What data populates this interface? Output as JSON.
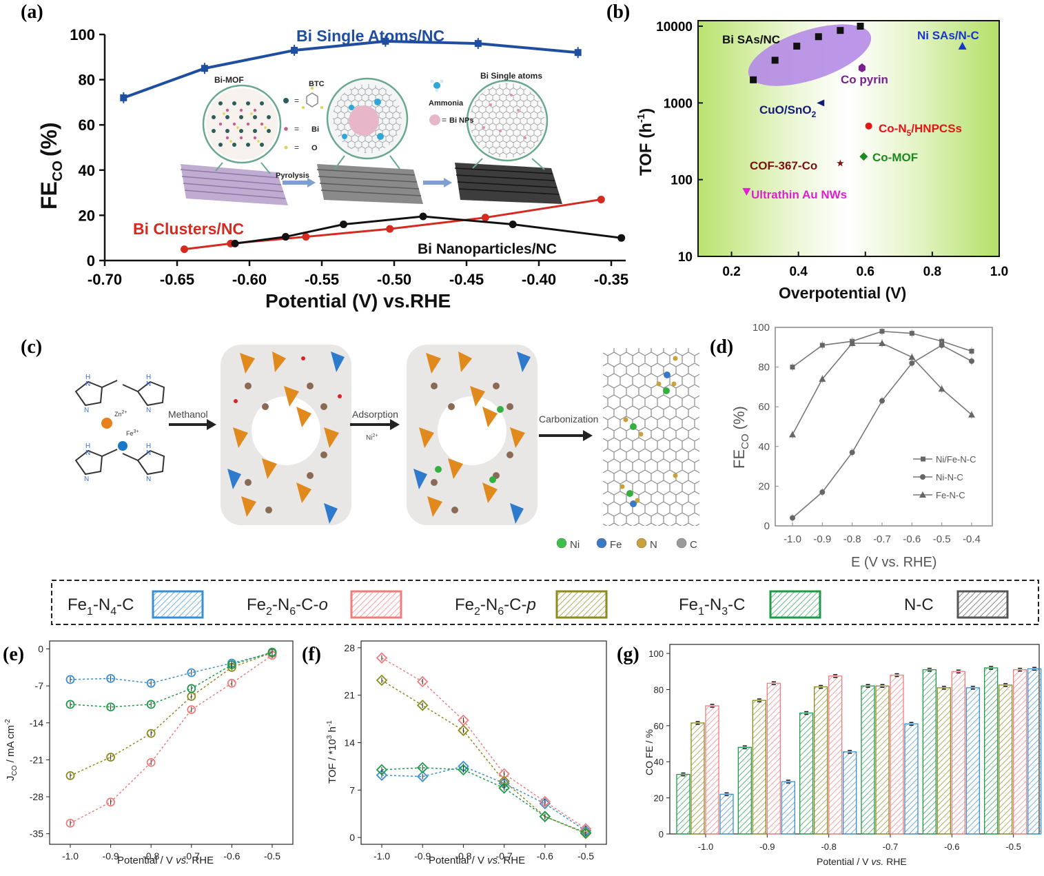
{
  "figure_title": "Composite figure: CO2-to-CO electrocatalysis on single-atom catalysts",
  "panel_labels": [
    "(a)",
    "(b)",
    "(c)",
    "(d)",
    "(e)",
    "(f)",
    "(g)"
  ],
  "colors": {
    "blue_line": "#1f4ea0",
    "red_line": "#d42a20",
    "black_line": "#111111",
    "green_bg": "#b9e36f",
    "ellipse": "#b58be6",
    "fe1n4": "#3a8fd0",
    "fe2n6o": "#f07c7c",
    "fe2n6p": "#8d8a1e",
    "fe1n3": "#1f9a4a",
    "nc": "#555555"
  },
  "chart_data": [
    {
      "panel": "(a)",
      "type": "line",
      "ylabel_main": "FE",
      "ylabel_sub": "CO",
      "ylabel_unit": "(%)",
      "xlabel": "Potential (V) vs.RHE",
      "xlim": [
        -0.7,
        -0.34
      ],
      "ylim": [
        0,
        100
      ],
      "xticks": [
        "-0.70",
        "-0.65",
        "-0.60",
        "-0.55",
        "-0.50",
        "-0.45",
        "-0.40",
        "-0.35"
      ],
      "yticks": [
        "0",
        "20",
        "40",
        "60",
        "80",
        "100"
      ],
      "series": [
        {
          "name": "Bi Single Atoms/NC",
          "x": [
            -0.687,
            -0.631,
            -0.569,
            -0.506,
            -0.442,
            -0.373
          ],
          "values": [
            72,
            85,
            93,
            97,
            96,
            92
          ]
        },
        {
          "name": "Bi Clusters/NC",
          "x": [
            -0.645,
            -0.613,
            -0.561,
            -0.503,
            -0.437,
            -0.357
          ],
          "values": [
            5,
            7.5,
            10.5,
            14,
            19,
            27
          ]
        },
        {
          "name": "Bi Nanoparticles/NC",
          "x": [
            -0.61,
            -0.575,
            -0.535,
            -0.48,
            -0.418,
            -0.343
          ],
          "values": [
            7.5,
            10.5,
            16,
            19.5,
            16,
            10
          ]
        }
      ],
      "inset_labels": {
        "bimof": "Bi-MOF",
        "btc": "BTC",
        "bi": "Bi",
        "o": "O",
        "ammonia": "Ammonia",
        "binps": "Bi NPs",
        "pyrolysis": "Pyrolysis",
        "bisingle": "Bi Single atoms"
      }
    },
    {
      "panel": "(b)",
      "type": "scatter",
      "ylabel_main": "TOF (h",
      "ylabel_sup": "-1",
      "ylabel_end": ")",
      "xlabel": "Overpotential (V)",
      "xlim": [
        0.1,
        1.0
      ],
      "ylim": [
        10,
        10000
      ],
      "yscale": "log",
      "xticks": [
        "0.2",
        "0.4",
        "0.6",
        "0.8",
        "1.0"
      ],
      "yticks": [
        "10",
        "100",
        "1000",
        "10000"
      ],
      "series": [
        {
          "name": "Bi SAs/NC",
          "x": [
            0.265,
            0.33,
            0.395,
            0.46,
            0.525,
            0.585
          ],
          "values": [
            2000,
            3600,
            5500,
            7300,
            8800,
            10000
          ]
        },
        {
          "name": "Ni SAs/N-C",
          "x": [
            0.89
          ],
          "values": [
            5500
          ]
        },
        {
          "name": "Co pyrin",
          "x": [
            0.59
          ],
          "values": [
            2900
          ]
        },
        {
          "name": "CuO/SnO2",
          "x": [
            0.465
          ],
          "values": [
            1000
          ]
        },
        {
          "name": "Co-N5/HNPCSs",
          "x": [
            0.61
          ],
          "values": [
            500
          ]
        },
        {
          "name": "Co-MOF",
          "x": [
            0.595
          ],
          "values": [
            200
          ]
        },
        {
          "name": "COF-367-Co",
          "x": [
            0.525
          ],
          "values": [
            165
          ]
        },
        {
          "name": "Ultrathin Au NWs",
          "x": [
            0.245
          ],
          "values": [
            70
          ]
        }
      ],
      "labels": {
        "bisas": "Bi SAs/NC",
        "nisas": "Ni SAs/N-C",
        "copyrin": "Co pyrin",
        "cuo": "CuO/SnO",
        "cuo_sub": "2",
        "con5": "Co-N",
        "con5_sub": "5",
        "con5_end": "/HNPCSs",
        "comof": "Co-MOF",
        "cof": "COF-367-Co",
        "au": "Ultrathin Au NWs"
      }
    },
    {
      "panel": "(d)",
      "type": "line",
      "ylabel_main": "FE",
      "ylabel_sub": "CO",
      "ylabel_unit": "(%)",
      "xlabel": "E (V vs. RHE)",
      "xlim": [
        -1.05,
        -0.35
      ],
      "ylim": [
        0,
        100
      ],
      "xticks": [
        "-1.0",
        "-0.9",
        "-0.8",
        "-0.7",
        "-0.6",
        "-0.5",
        "-0.4"
      ],
      "yticks": [
        "0",
        "20",
        "40",
        "60",
        "80",
        "100"
      ],
      "categories": [
        -1.0,
        -0.9,
        -0.8,
        -0.7,
        -0.6,
        -0.5,
        -0.4
      ],
      "series": [
        {
          "name": "Ni/Fe-N-C",
          "values": [
            80,
            91,
            93,
            98,
            97,
            93,
            88
          ]
        },
        {
          "name": "Ni-N-C",
          "values": [
            4,
            17,
            37,
            63,
            82,
            91,
            83
          ]
        },
        {
          "name": "Fe-N-C",
          "values": [
            46,
            74,
            92,
            92,
            85,
            69,
            56
          ]
        }
      ]
    },
    {
      "panel": "(e)",
      "type": "line",
      "ylabel_main": "J",
      "ylabel_sub": "CO",
      "ylabel_unit": " / mA cm",
      "ylabel_sup": "-2",
      "xlabel": "Potential / V ",
      "xlabel_ital": "vs.",
      "xlabel_end": " RHE",
      "xlim": [
        -1.05,
        -0.45
      ],
      "ylim": [
        -37,
        1.5
      ],
      "xticks": [
        "-1.0",
        "-0.9",
        "-0.8",
        "-0.7",
        "-0.6",
        "-0.5"
      ],
      "yticks": [
        "0",
        "-7",
        "-14",
        "-21",
        "-28",
        "-35"
      ],
      "categories": [
        -1.0,
        -0.9,
        -0.8,
        -0.7,
        -0.6,
        -0.5
      ],
      "series": [
        {
          "name": "Fe1-N4-C",
          "values": [
            -5.8,
            -5.6,
            -6.5,
            -4.5,
            -2.7,
            -0.8
          ]
        },
        {
          "name": "Fe2-N6-C-o",
          "values": [
            -33,
            -29,
            -21.5,
            -11.5,
            -6.5,
            -1.2
          ]
        },
        {
          "name": "Fe2-N6-C-p",
          "values": [
            -24,
            -20.5,
            -16,
            -9,
            -3.5,
            -0.7
          ]
        },
        {
          "name": "Fe1-N3-C",
          "values": [
            -10.5,
            -11,
            -10.5,
            -7.5,
            -3,
            -0.6
          ]
        }
      ]
    },
    {
      "panel": "(f)",
      "type": "line",
      "ylabel_main": "TOF / *10",
      "ylabel_sup": "3",
      "ylabel_end": " h",
      "ylabel_sup2": "-1",
      "xlabel": "Potential / V ",
      "xlabel_ital": "vs.",
      "xlabel_end": " RHE",
      "xlim": [
        -1.05,
        -0.45
      ],
      "ylim": [
        -1,
        29
      ],
      "xticks": [
        "-1.0",
        "-0.9",
        "-0.8",
        "-0.7",
        "-0.6",
        "-0.5"
      ],
      "yticks": [
        "0",
        "7",
        "14",
        "21",
        "28"
      ],
      "categories": [
        -1.0,
        -0.9,
        -0.8,
        -0.7,
        -0.6,
        -0.5
      ],
      "series": [
        {
          "name": "Fe1-N4-C",
          "values": [
            9.2,
            9,
            10.5,
            8,
            5,
            1
          ]
        },
        {
          "name": "Fe2-N6-C-o",
          "values": [
            26.5,
            23,
            17.3,
            9.4,
            5.3,
            1.3
          ]
        },
        {
          "name": "Fe2-N6-C-p",
          "values": [
            23.2,
            19.5,
            15.8,
            8.3,
            3.1,
            0.6
          ]
        },
        {
          "name": "Fe1-N3-C",
          "values": [
            10,
            10.3,
            10,
            7.3,
            3.1,
            0.7
          ]
        }
      ]
    },
    {
      "panel": "(g)",
      "type": "bar",
      "ylabel": "CO FE / %",
      "xlabel": "Potential / V ",
      "xlabel_ital": "vs.",
      "xlabel_end": " RHE",
      "ylim": [
        0,
        105
      ],
      "yticks": [
        "0",
        "20",
        "40",
        "60",
        "80",
        "100"
      ],
      "categories": [
        "-1.0",
        "-0.9",
        "-0.8",
        "-0.7",
        "-0.6",
        "-0.5"
      ],
      "series": [
        {
          "name": "Fe1-N3-C",
          "values": [
            33,
            48,
            67,
            82,
            91,
            92
          ]
        },
        {
          "name": "Fe2-N6-C-p",
          "values": [
            61.5,
            74,
            81.5,
            82,
            81,
            82.5
          ]
        },
        {
          "name": "Fe2-N6-C-o",
          "values": [
            71,
            83.5,
            87.5,
            88,
            90,
            91
          ]
        },
        {
          "name": "Fe1-N4-C",
          "values": [
            22,
            29,
            45.5,
            61,
            81,
            91.5
          ]
        }
      ]
    }
  ],
  "panel_c": {
    "labels": {
      "zn": "Zn",
      "zn_sup": "2+",
      "fe": "Fe",
      "fe_sup": "3+",
      "methanol": "Methanol",
      "adsorption": "Adsorption",
      "ni": "Ni",
      "ni_sup": "2+",
      "carbonization": "Carbonization"
    },
    "legend": [
      {
        "label": "Ni",
        "color": "#3cc04a"
      },
      {
        "label": "Fe",
        "color": "#3a78c8"
      },
      {
        "label": "N",
        "color": "#c9a23a"
      },
      {
        "label": "C",
        "color": "#9a9a9a"
      }
    ]
  },
  "legend_efg": [
    {
      "main": "Fe",
      "s1": "1",
      "m2": "-N",
      "s2": "4",
      "m3": "-C",
      "ital": ""
    },
    {
      "main": "Fe",
      "s1": "2",
      "m2": "-N",
      "s2": "6",
      "m3": "-C-",
      "ital": "o"
    },
    {
      "main": "Fe",
      "s1": "2",
      "m2": "-N",
      "s2": "6",
      "m3": "-C-",
      "ital": "p"
    },
    {
      "main": "Fe",
      "s1": "1",
      "m2": "-N",
      "s2": "3",
      "m3": "-C",
      "ital": ""
    },
    {
      "main": "N-C",
      "s1": "",
      "m2": "",
      "s2": "",
      "m3": "",
      "ital": ""
    }
  ]
}
